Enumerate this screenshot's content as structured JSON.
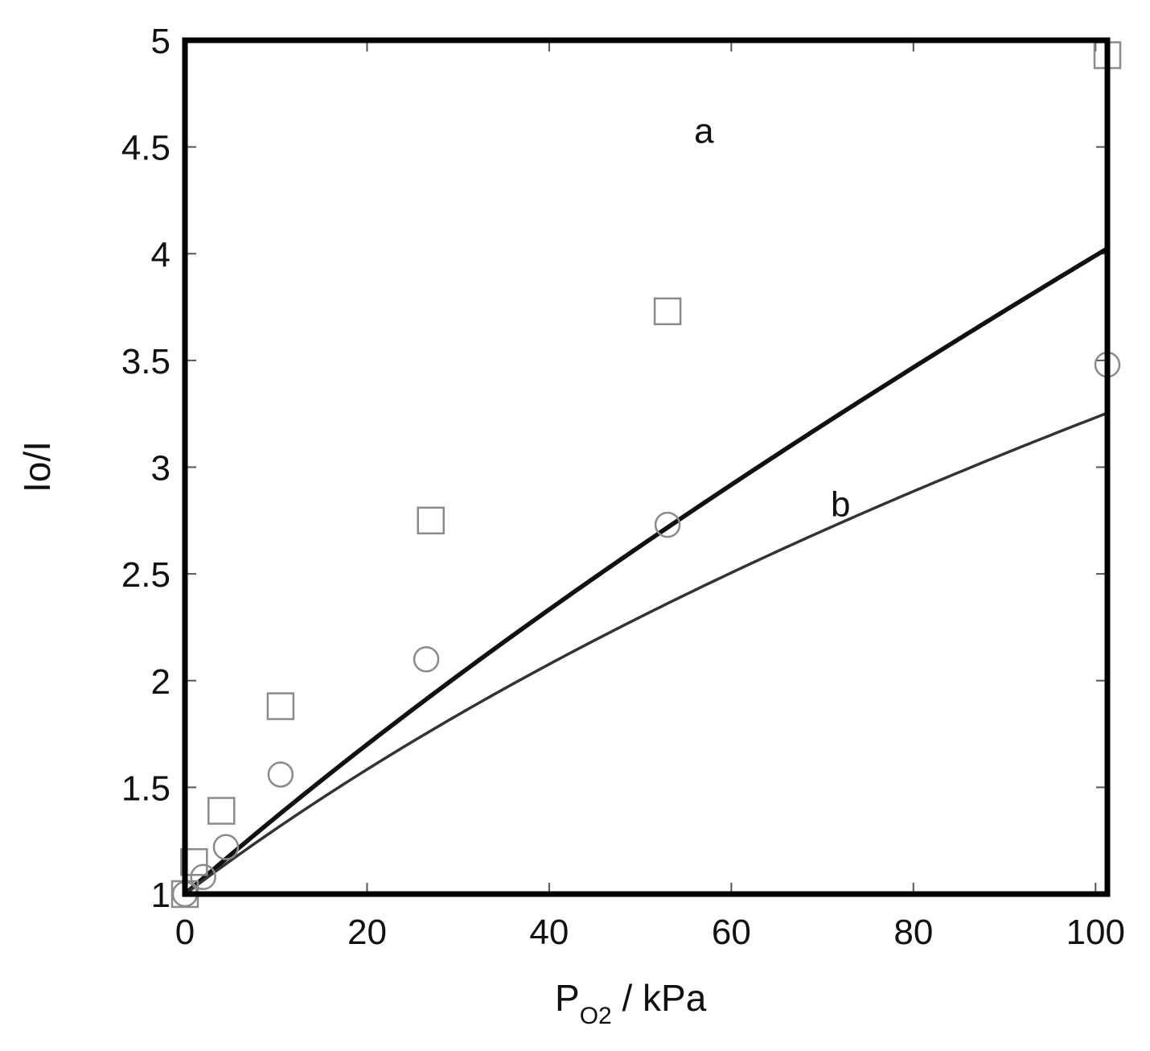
{
  "chart_data": {
    "type": "scatter",
    "xlabel": "P",
    "xlabel_sub": "O2",
    "xlabel_unit": " / kPa",
    "ylabel": "Io/I",
    "xlim": [
      0,
      101.3
    ],
    "ylim": [
      1,
      5
    ],
    "x_ticks": [
      0,
      20,
      40,
      60,
      80,
      100
    ],
    "y_ticks": [
      1,
      1.5,
      2,
      2.5,
      3,
      3.5,
      4,
      4.5,
      5
    ],
    "x_tick_labels": [
      "0",
      "20",
      "40",
      "60",
      "80",
      "100"
    ],
    "y_tick_labels": [
      "1",
      "1.5",
      "2",
      "2.5",
      "3",
      "3.5",
      "4",
      "4.5",
      "5"
    ],
    "grid": false,
    "series": [
      {
        "label": "a",
        "marker": "square",
        "x": [
          0,
          1,
          4,
          10.5,
          27,
          53,
          101.3
        ],
        "y": [
          1.0,
          1.15,
          1.39,
          1.88,
          2.75,
          3.73,
          4.93
        ],
        "fit": {
          "type": "two-site Stern-Volmer",
          "f": 0.9,
          "K1": 0.041,
          "K2": 0.0035
        }
      },
      {
        "label": "b",
        "marker": "circle",
        "x": [
          0,
          2,
          4.5,
          10.5,
          26.5,
          53,
          101.3
        ],
        "y": [
          1.0,
          1.08,
          1.22,
          1.56,
          2.1,
          2.73,
          3.48
        ],
        "fit": {
          "type": "two-site Stern-Volmer",
          "f": 0.85,
          "K1": 0.0375,
          "K2": 0.0015
        }
      }
    ],
    "annotations": [
      {
        "text": "a",
        "x": 57,
        "y": 4.52
      },
      {
        "text": "b",
        "x": 72,
        "y": 2.77
      }
    ]
  }
}
